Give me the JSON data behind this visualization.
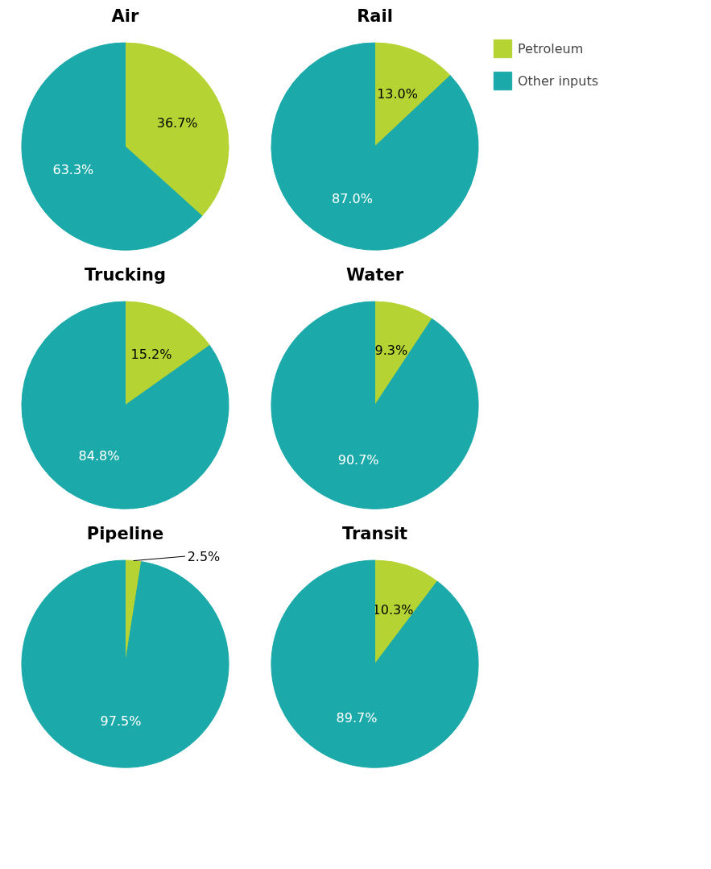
{
  "chart_data": [
    {
      "type": "pie",
      "title": "Air",
      "categories": [
        null,
        null
      ],
      "values": [
        36.7,
        63.3
      ],
      "colors": [
        "#b5d333",
        "#1ba9aa"
      ],
      "value_labels": [
        "36.7%",
        "63.3%"
      ]
    },
    {
      "type": "pie",
      "title": "Rail",
      "categories": [
        "Petroleum",
        "Other inputs"
      ],
      "values": [
        13.0,
        87.0
      ],
      "colors": [
        "#b5d333",
        "#1ba9aa"
      ],
      "value_labels": [
        "13.0%",
        "87.0%"
      ],
      "legend": "right"
    },
    {
      "type": "pie",
      "title": "Trucking",
      "categories": [
        null,
        null
      ],
      "values": [
        15.2,
        84.8
      ],
      "colors": [
        "#b5d333",
        "#1ba9aa"
      ],
      "value_labels": [
        "15.2%",
        "84.8%"
      ]
    },
    {
      "type": "pie",
      "title": "Water",
      "categories": [
        null,
        null
      ],
      "values": [
        9.3,
        90.7
      ],
      "colors": [
        "#b5d333",
        "#1ba9aa"
      ],
      "value_labels": [
        "9.3%",
        "90.7%"
      ]
    },
    {
      "type": "pie",
      "title": "Pipeline",
      "categories": [
        null,
        null
      ],
      "values": [
        2.5,
        97.5
      ],
      "colors": [
        "#b5d333",
        "#1ba9aa"
      ],
      "value_labels": [
        "2.5%",
        "97.5%"
      ]
    },
    {
      "type": "pie",
      "title": "Transit",
      "categories": [
        null,
        null
      ],
      "values": [
        10.3,
        89.7
      ],
      "colors": [
        "#b5d333",
        "#1ba9aa"
      ],
      "value_labels": [
        "10.3%",
        "89.7%"
      ]
    }
  ]
}
